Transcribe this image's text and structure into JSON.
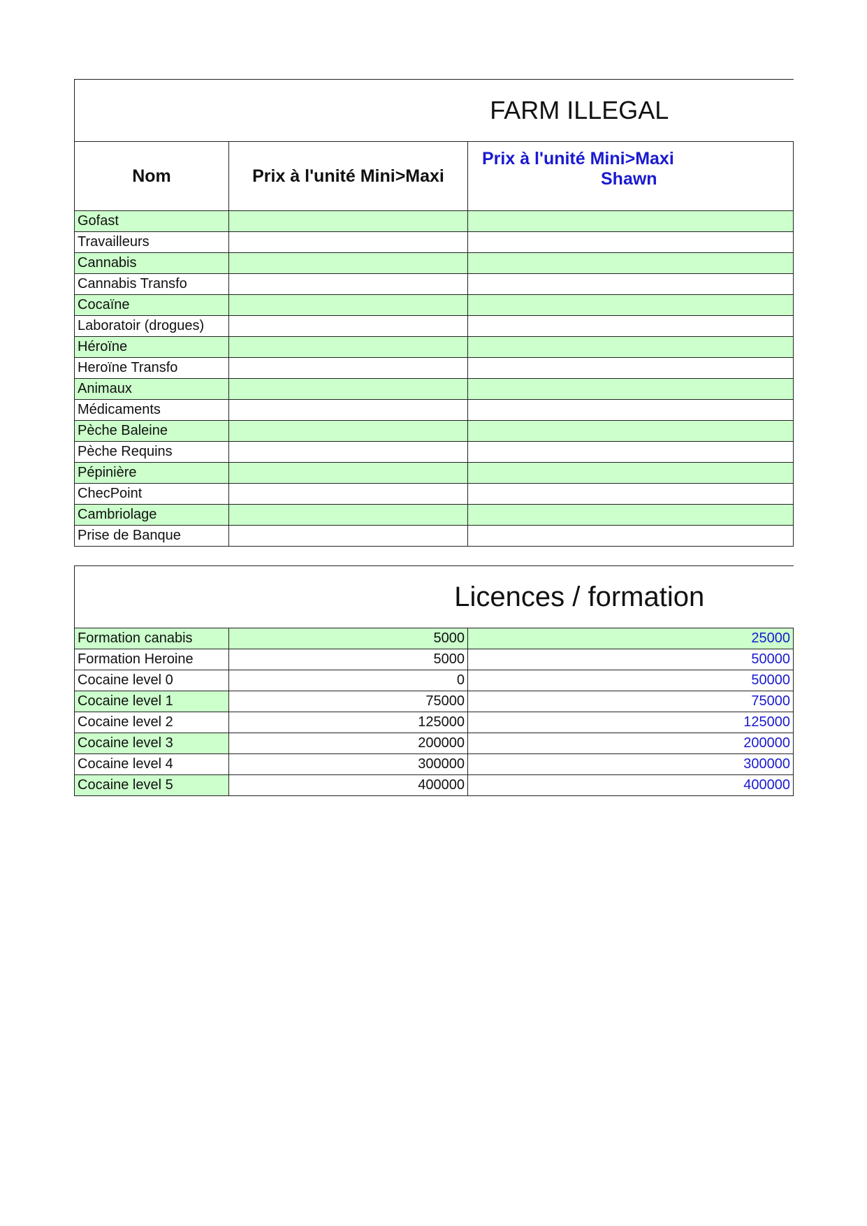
{
  "farm": {
    "title": "FARM ILLEGAL",
    "headers": {
      "nom": "Nom",
      "prix": "Prix à l'unité Mini>Maxi",
      "prix_shawn_line1": "Prix à l'unité Mini>Maxi",
      "prix_shawn_line2": "Shawn"
    },
    "rows": [
      "Gofast",
      "Travailleurs",
      "Cannabis",
      "Cannabis Transfo",
      "Cocaïne",
      "Laboratoir (drogues)",
      "Héroïne",
      "Heroïne Transfo",
      "Animaux",
      "Médicaments",
      "Pèche Baleine",
      "Pèche Requins",
      "Pépinière",
      "ChecPoint",
      "Cambriolage",
      "Prise de Banque"
    ]
  },
  "licences": {
    "title": "Licences / formation",
    "rows": [
      {
        "name": "Formation canabis",
        "prix": "5000",
        "shawn": "25000"
      },
      {
        "name": "Formation Heroine",
        "prix": "5000",
        "shawn": "50000"
      },
      {
        "name": "Cocaine level 0",
        "prix": "0",
        "shawn": "50000"
      },
      {
        "name": "Cocaine level 1",
        "prix": "75000",
        "shawn": "75000"
      },
      {
        "name": "Cocaine level 2",
        "prix": "125000",
        "shawn": "125000"
      },
      {
        "name": "Cocaine level 3",
        "prix": "200000",
        "shawn": "200000"
      },
      {
        "name": "Cocaine level 4",
        "prix": "300000",
        "shawn": "300000"
      },
      {
        "name": "Cocaine level 5",
        "prix": "400000",
        "shawn": "400000"
      }
    ]
  },
  "colors": {
    "row_highlight": "#ccffcc",
    "title_blue": "#1010d8"
  }
}
